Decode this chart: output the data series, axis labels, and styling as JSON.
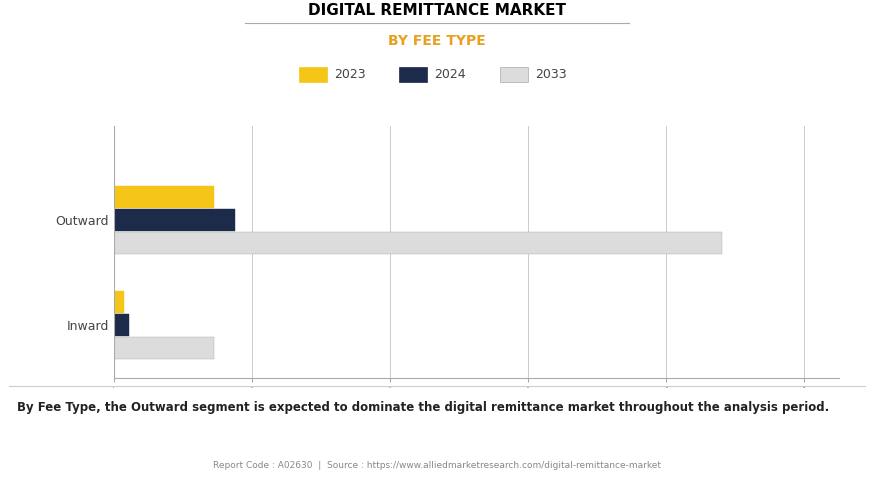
{
  "title": "DIGITAL REMITTANCE MARKET",
  "subtitle": "BY FEE TYPE",
  "categories": [
    "Outward",
    "Inward"
  ],
  "years": [
    "2023",
    "2024",
    "2033"
  ],
  "colors": [
    "#F5C518",
    "#1C2B4A",
    "#DCDCDC"
  ],
  "values": {
    "Outward": [
      14.5,
      17.5,
      88.0
    ],
    "Inward": [
      1.5,
      2.2,
      14.5
    ]
  },
  "xlim": [
    0,
    105
  ],
  "bar_height": 0.22,
  "footer_text": "By Fee Type, the Outward segment is expected to dominate the digital remittance market throughout the analysis period.",
  "source_text": "Report Code : A02630  |  Source : https://www.alliedmarketresearch.com/digital-remittance-market",
  "subtitle_color": "#E8A020",
  "title_color": "#000000",
  "background_color": "#FFFFFF",
  "grid_color": "#CCCCCC"
}
